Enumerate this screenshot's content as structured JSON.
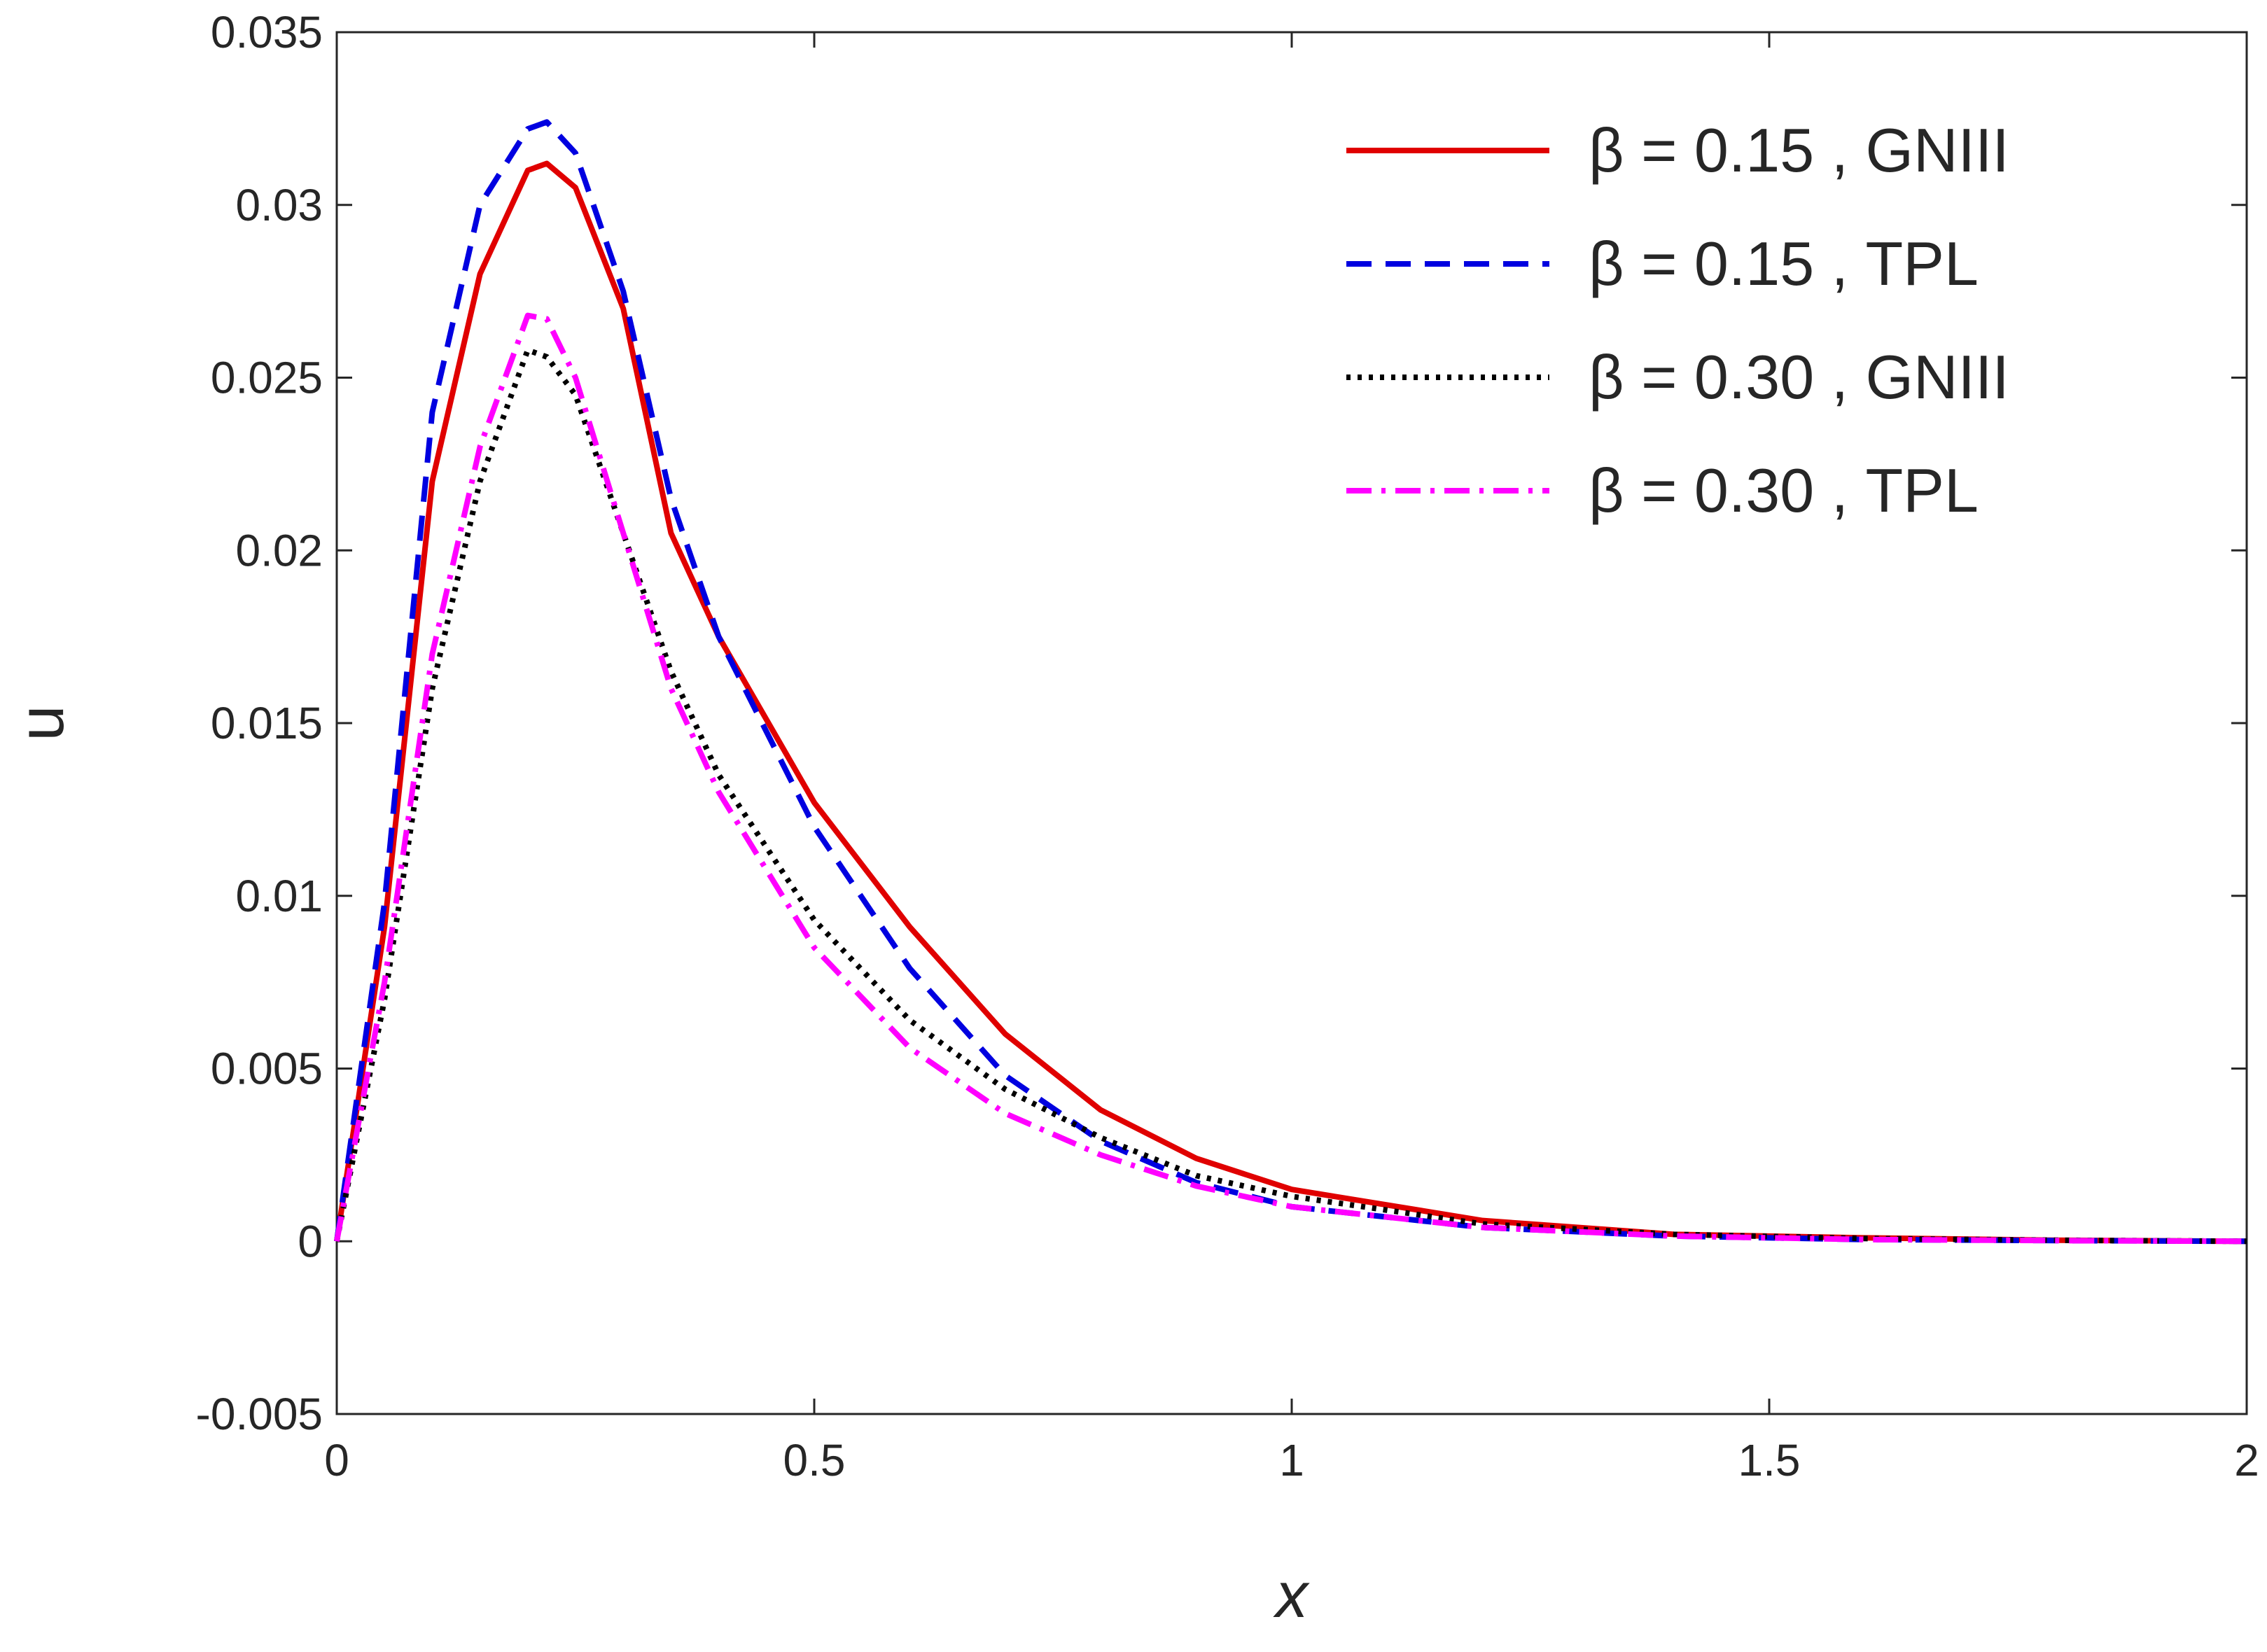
{
  "chart_data": {
    "type": "line",
    "xlabel": "x",
    "ylabel": "u",
    "x": [
      0,
      0.05,
      0.1,
      0.15,
      0.2,
      0.22,
      0.25,
      0.3,
      0.35,
      0.4,
      0.5,
      0.6,
      0.7,
      0.8,
      0.9,
      1.0,
      1.2,
      1.4,
      1.6,
      1.8,
      2.0
    ],
    "series": [
      {
        "name": "β = 0.15 , GNIII",
        "color": "#e00000",
        "dash": "solid",
        "values": [
          0,
          0.0091,
          0.022,
          0.028,
          0.031,
          0.0312,
          0.0305,
          0.027,
          0.0205,
          0.0175,
          0.0127,
          0.0091,
          0.006,
          0.0038,
          0.0024,
          0.0015,
          0.0006,
          0.0002,
          0.0001,
          3e-05,
          0
        ]
      },
      {
        "name": "β = 0.15 , TPL",
        "color": "#0000e0",
        "dash": "dashed",
        "values": [
          0,
          0.0098,
          0.024,
          0.03,
          0.0322,
          0.0324,
          0.0315,
          0.0275,
          0.0215,
          0.0175,
          0.012,
          0.0079,
          0.0048,
          0.0029,
          0.0017,
          0.001,
          0.0004,
          0.00015,
          5e-05,
          2e-05,
          0
        ]
      },
      {
        "name": "β = 0.30 , GNIII",
        "color": "#000000",
        "dash": "dotted",
        "values": [
          0,
          0.007,
          0.016,
          0.022,
          0.0258,
          0.0256,
          0.0245,
          0.0205,
          0.0165,
          0.0135,
          0.0093,
          0.0064,
          0.0044,
          0.003,
          0.0019,
          0.0013,
          0.0005,
          0.0002,
          8e-05,
          3e-05,
          0
        ]
      },
      {
        "name": "β = 0.30 , TPL",
        "color": "#ff00ff",
        "dash": "dashdot",
        "values": [
          0,
          0.0075,
          0.017,
          0.023,
          0.0268,
          0.0267,
          0.025,
          0.0205,
          0.016,
          0.013,
          0.0085,
          0.0056,
          0.0037,
          0.0025,
          0.0016,
          0.001,
          0.0004,
          0.00015,
          5e-05,
          2e-05,
          0
        ]
      }
    ],
    "xlim": [
      0,
      2
    ],
    "xticks": [
      0,
      0.5,
      1,
      1.5,
      2
    ],
    "ylim": [
      -0.005,
      0.035
    ],
    "yticks": [
      -0.005,
      0,
      0.005,
      0.01,
      0.015,
      0.02,
      0.025,
      0.03,
      0.035
    ],
    "grid": false,
    "legend": "upper right"
  }
}
